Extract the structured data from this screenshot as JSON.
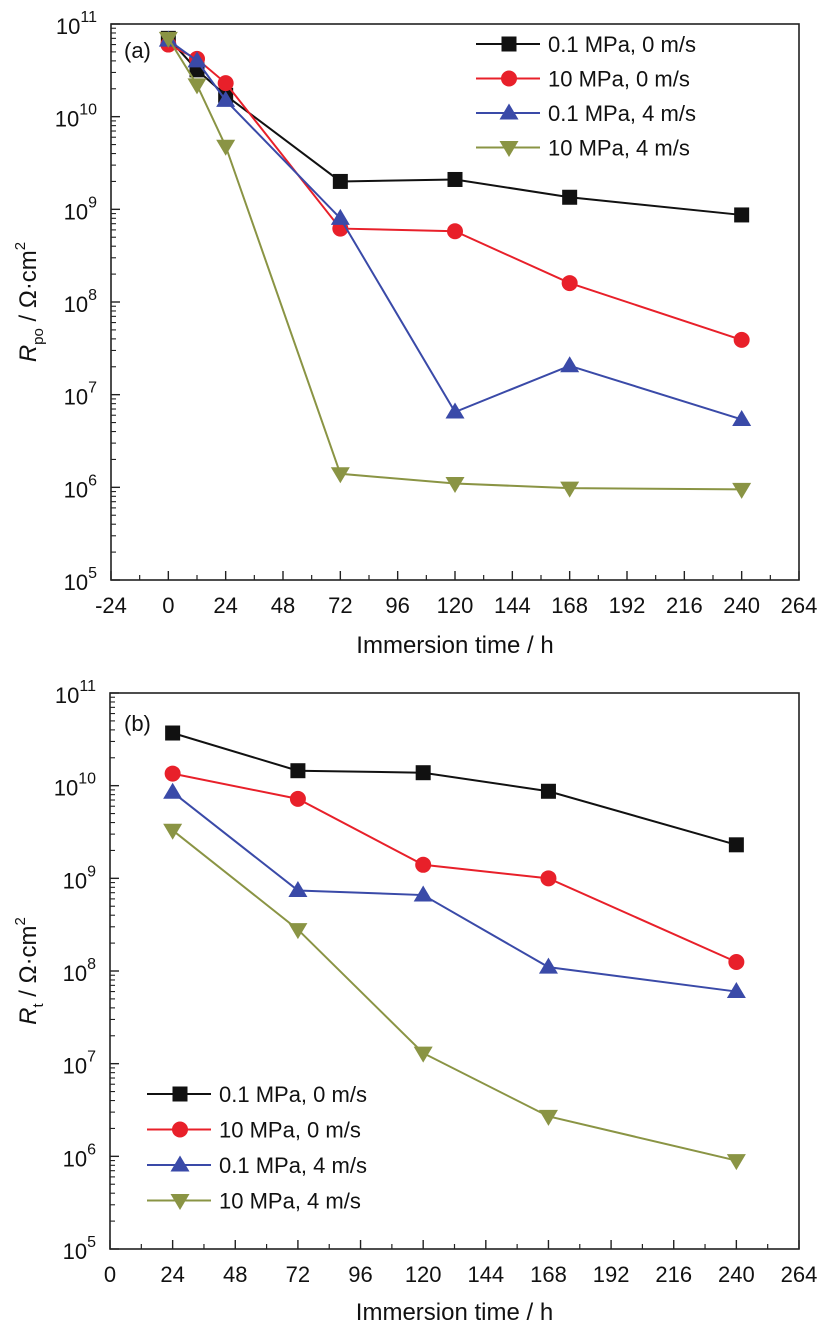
{
  "chart_data": [
    {
      "type": "line",
      "panel_label": "(a)",
      "title": "",
      "xlabel": "Immersion time / h",
      "ylabel": {
        "main": "R",
        "sub": "po",
        "unit": " / Ω·cm",
        "sup": "2"
      },
      "xlim": [
        -24,
        264
      ],
      "ylim": [
        100000,
        100000000000
      ],
      "yscale": "log",
      "x_ticks": [
        "-24",
        "0",
        "24",
        "48",
        "72",
        "96",
        "120",
        "144",
        "168",
        "192",
        "216",
        "240",
        "264"
      ],
      "y_ticks": [
        {
          "base": "10",
          "exp": "5"
        },
        {
          "base": "10",
          "exp": "6"
        },
        {
          "base": "10",
          "exp": "7"
        },
        {
          "base": "10",
          "exp": "8"
        },
        {
          "base": "10",
          "exp": "9"
        },
        {
          "base": "10",
          "exp": "10"
        },
        {
          "base": "10",
          "exp": "11"
        }
      ],
      "legend_position": "top-right",
      "x": [
        0,
        12,
        24,
        72,
        120,
        168,
        240
      ],
      "series": [
        {
          "name": "0.1 MPa, 0 m/s",
          "color": "#111111",
          "marker": "square",
          "values": [
            70000000000,
            32000000000,
            17000000000,
            2000000000,
            2100000000,
            1350000000,
            870000000
          ]
        },
        {
          "name": "10 MPa, 0 m/s",
          "color": "#e8202a",
          "marker": "circle",
          "values": [
            60000000000,
            42000000000,
            23000000000,
            620000000,
            580000000,
            160000000,
            39000000
          ]
        },
        {
          "name": "0.1 MPa, 4 m/s",
          "color": "#3a4aa8",
          "marker": "triangle-up",
          "values": [
            67000000000,
            40000000000,
            15000000000,
            800000000,
            6500000,
            20500000,
            5400000
          ]
        },
        {
          "name": "10 MPa, 4 m/s",
          "color": "#8a9444",
          "marker": "triangle-down",
          "values": [
            70000000000,
            22000000000,
            4800000000,
            1400000,
            1100000,
            980000,
            950000
          ]
        }
      ]
    },
    {
      "type": "line",
      "panel_label": "(b)",
      "title": "",
      "xlabel": "Immersion time / h",
      "ylabel": {
        "main": "R",
        "sub": "t",
        "unit": " / Ω·cm",
        "sup": "2"
      },
      "xlim": [
        0,
        264
      ],
      "ylim": [
        100000,
        100000000000
      ],
      "yscale": "log",
      "x_ticks": [
        "0",
        "24",
        "48",
        "72",
        "96",
        "120",
        "144",
        "168",
        "192",
        "216",
        "240",
        "264"
      ],
      "y_ticks": [
        {
          "base": "10",
          "exp": "5"
        },
        {
          "base": "10",
          "exp": "6"
        },
        {
          "base": "10",
          "exp": "7"
        },
        {
          "base": "10",
          "exp": "8"
        },
        {
          "base": "10",
          "exp": "9"
        },
        {
          "base": "10",
          "exp": "10"
        },
        {
          "base": "10",
          "exp": "11"
        }
      ],
      "legend_position": "bottom-left",
      "x": [
        24,
        72,
        120,
        168,
        240
      ],
      "series": [
        {
          "name": "0.1 MPa, 0 m/s",
          "color": "#111111",
          "marker": "square",
          "values": [
            37000000000,
            14500000000,
            13800000000,
            8700000000,
            2300000000
          ]
        },
        {
          "name": "10 MPa, 0 m/s",
          "color": "#e8202a",
          "marker": "circle",
          "values": [
            13500000000,
            7200000000,
            1400000000,
            1000000000,
            125000000
          ]
        },
        {
          "name": "0.1 MPa, 4 m/s",
          "color": "#3a4aa8",
          "marker": "triangle-up",
          "values": [
            8500000000,
            740000000,
            660000000,
            110000000,
            60000000
          ]
        },
        {
          "name": "10 MPa, 4 m/s",
          "color": "#8a9444",
          "marker": "triangle-down",
          "values": [
            3300000000,
            280000000,
            13000000,
            2700000,
            900000
          ]
        }
      ]
    }
  ]
}
